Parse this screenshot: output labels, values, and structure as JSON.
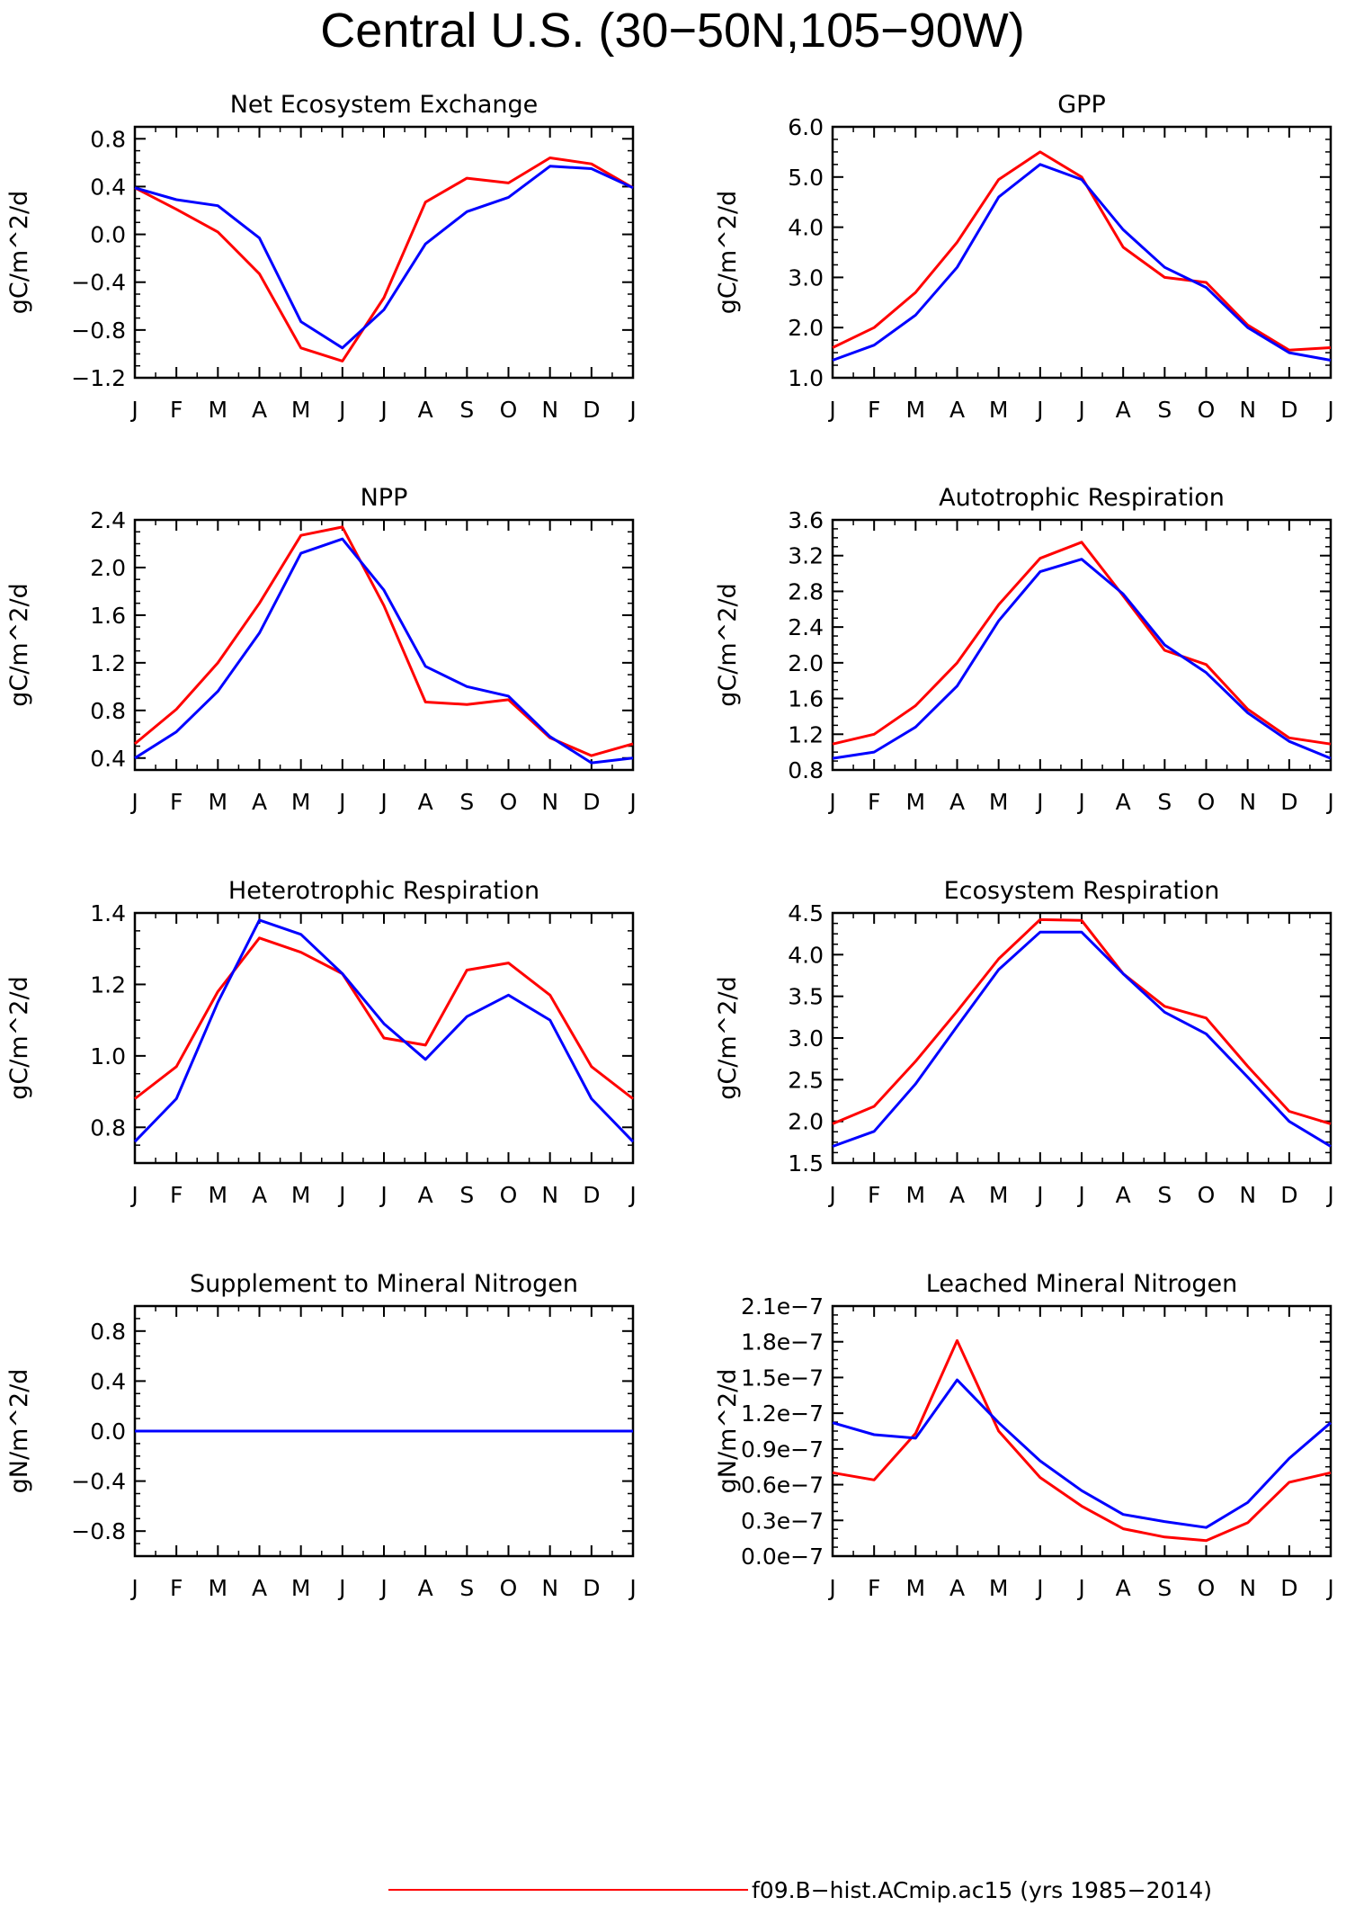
{
  "figure": {
    "title": "Central U.S. (30−50N,105−90W)",
    "legend": [
      {
        "label": "f09.B−hist.ACmip.ac15 (yrs 1985−2014)",
        "color": "#ff0000"
      }
    ]
  },
  "months": [
    "J",
    "F",
    "M",
    "A",
    "M",
    "J",
    "J",
    "A",
    "S",
    "O",
    "N",
    "D",
    "J"
  ],
  "chart_data": [
    {
      "type": "line",
      "title": "Net Ecosystem Exchange",
      "ylabel": "gC/m^2/d",
      "ylim": [
        -1.2,
        0.9
      ],
      "yticks": [
        -1.2,
        -0.8,
        -0.4,
        0.0,
        0.4,
        0.8
      ],
      "yticklabels": [
        "−1.2",
        "−0.8",
        "−0.4",
        "0.0",
        "0.4",
        "0.8"
      ],
      "series": [
        {
          "color": "#ff0000",
          "values": [
            0.39,
            0.21,
            0.02,
            -0.33,
            -0.95,
            -1.06,
            -0.53,
            0.27,
            0.47,
            0.43,
            0.64,
            0.59,
            0.39
          ]
        },
        {
          "color": "#0000ff",
          "values": [
            0.39,
            0.29,
            0.24,
            -0.03,
            -0.73,
            -0.95,
            -0.63,
            -0.08,
            0.19,
            0.31,
            0.57,
            0.55,
            0.39
          ]
        }
      ]
    },
    {
      "type": "line",
      "title": "GPP",
      "ylabel": "gC/m^2/d",
      "ylim": [
        1.0,
        6.0
      ],
      "yticks": [
        1.0,
        2.0,
        3.0,
        4.0,
        5.0,
        6.0
      ],
      "yticklabels": [
        "1.0",
        "2.0",
        "3.0",
        "4.0",
        "5.0",
        "6.0"
      ],
      "series": [
        {
          "color": "#ff0000",
          "values": [
            1.6,
            2.0,
            2.7,
            3.7,
            4.95,
            5.5,
            5.0,
            3.6,
            3.0,
            2.9,
            2.05,
            1.55,
            1.6
          ]
        },
        {
          "color": "#0000ff",
          "values": [
            1.35,
            1.65,
            2.25,
            3.2,
            4.6,
            5.25,
            4.95,
            3.95,
            3.2,
            2.8,
            2.0,
            1.5,
            1.35
          ]
        }
      ]
    },
    {
      "type": "line",
      "title": "NPP",
      "ylabel": "gC/m^2/d",
      "ylim": [
        0.3,
        2.4
      ],
      "yticks": [
        0.4,
        0.8,
        1.2,
        1.6,
        2.0,
        2.4
      ],
      "yticklabels": [
        "0.4",
        "0.8",
        "1.2",
        "1.6",
        "2.0",
        "2.4"
      ],
      "series": [
        {
          "color": "#ff0000",
          "values": [
            0.52,
            0.81,
            1.2,
            1.7,
            2.27,
            2.34,
            1.68,
            0.87,
            0.85,
            0.89,
            0.57,
            0.42,
            0.52
          ]
        },
        {
          "color": "#0000ff",
          "values": [
            0.4,
            0.62,
            0.96,
            1.45,
            2.12,
            2.24,
            1.81,
            1.17,
            1.0,
            0.92,
            0.58,
            0.36,
            0.4
          ]
        }
      ]
    },
    {
      "type": "line",
      "title": "Autotrophic Respiration",
      "ylabel": "gC/m^2/d",
      "ylim": [
        0.8,
        3.6
      ],
      "yticks": [
        0.8,
        1.2,
        1.6,
        2.0,
        2.4,
        2.8,
        3.2,
        3.6
      ],
      "yticklabels": [
        "0.8",
        "1.2",
        "1.6",
        "2.0",
        "2.4",
        "2.8",
        "3.2",
        "3.6"
      ],
      "series": [
        {
          "color": "#ff0000",
          "values": [
            1.09,
            1.2,
            1.52,
            2.0,
            2.65,
            3.17,
            3.35,
            2.75,
            2.14,
            1.98,
            1.48,
            1.16,
            1.09
          ]
        },
        {
          "color": "#0000ff",
          "values": [
            0.93,
            1.0,
            1.28,
            1.74,
            2.47,
            3.02,
            3.16,
            2.77,
            2.2,
            1.89,
            1.44,
            1.12,
            0.93
          ]
        }
      ]
    },
    {
      "type": "line",
      "title": "Heterotrophic Respiration",
      "ylabel": "gC/m^2/d",
      "ylim": [
        0.7,
        1.4
      ],
      "yticks": [
        0.8,
        1.0,
        1.2,
        1.4
      ],
      "yticklabels": [
        "0.8",
        "1.0",
        "1.2",
        "1.4"
      ],
      "series": [
        {
          "color": "#ff0000",
          "values": [
            0.88,
            0.97,
            1.18,
            1.33,
            1.29,
            1.23,
            1.05,
            1.03,
            1.24,
            1.26,
            1.17,
            0.97,
            0.88
          ]
        },
        {
          "color": "#0000ff",
          "values": [
            0.76,
            0.88,
            1.15,
            1.38,
            1.34,
            1.23,
            1.09,
            0.99,
            1.11,
            1.17,
            1.1,
            0.88,
            0.76
          ]
        }
      ]
    },
    {
      "type": "line",
      "title": "Ecosystem Respiration",
      "ylabel": "gC/m^2/d",
      "ylim": [
        1.5,
        4.5
      ],
      "yticks": [
        1.5,
        2.0,
        2.5,
        3.0,
        3.5,
        4.0,
        4.5
      ],
      "yticklabels": [
        "1.5",
        "2.0",
        "2.5",
        "3.0",
        "3.5",
        "4.0",
        "4.5"
      ],
      "series": [
        {
          "color": "#ff0000",
          "values": [
            1.97,
            2.18,
            2.72,
            3.32,
            3.95,
            4.42,
            4.41,
            3.77,
            3.38,
            3.24,
            2.66,
            2.12,
            1.97
          ]
        },
        {
          "color": "#0000ff",
          "values": [
            1.7,
            1.88,
            2.45,
            3.14,
            3.82,
            4.27,
            4.27,
            3.77,
            3.31,
            3.05,
            2.53,
            2.0,
            1.7
          ]
        }
      ]
    },
    {
      "type": "line",
      "title": "Supplement to Mineral Nitrogen",
      "ylabel": "gN/m^2/d",
      "ylim": [
        -1.0,
        1.0
      ],
      "yticks": [
        -0.8,
        -0.4,
        0.0,
        0.4,
        0.8
      ],
      "yticklabels": [
        "−0.8",
        "−0.4",
        "0.0",
        "0.4",
        "0.8"
      ],
      "series": [
        {
          "color": "#ff0000",
          "values": [
            0,
            0,
            0,
            0,
            0,
            0,
            0,
            0,
            0,
            0,
            0,
            0,
            0
          ]
        },
        {
          "color": "#0000ff",
          "values": [
            0,
            0,
            0,
            0,
            0,
            0,
            0,
            0,
            0,
            0,
            0,
            0,
            0
          ]
        }
      ]
    },
    {
      "type": "line",
      "title": "Leached Mineral Nitrogen",
      "ylabel": "gN/m^2/d",
      "ylim": [
        0.0,
        2.1e-07
      ],
      "yticks": [
        0.0,
        3e-08,
        6e-08,
        9e-08,
        1.2e-07,
        1.5e-07,
        1.8e-07,
        2.1e-07
      ],
      "yticklabels": [
        "0.0e−7",
        "0.3e−7",
        "0.6e−7",
        "0.9e−7",
        "1.2e−7",
        "1.5e−7",
        "1.8e−7",
        "2.1e−7"
      ],
      "series": [
        {
          "color": "#ff0000",
          "values": [
            7e-08,
            6.4e-08,
            1.03e-07,
            1.81e-07,
            1.05e-07,
            6.6e-08,
            4.2e-08,
            2.3e-08,
            1.6e-08,
            1.3e-08,
            2.8e-08,
            6.2e-08,
            7e-08
          ]
        },
        {
          "color": "#0000ff",
          "values": [
            1.12e-07,
            1.02e-07,
            9.9e-08,
            1.48e-07,
            1.12e-07,
            8e-08,
            5.5e-08,
            3.5e-08,
            2.9e-08,
            2.4e-08,
            4.5e-08,
            8.2e-08,
            1.12e-07
          ]
        }
      ]
    }
  ]
}
